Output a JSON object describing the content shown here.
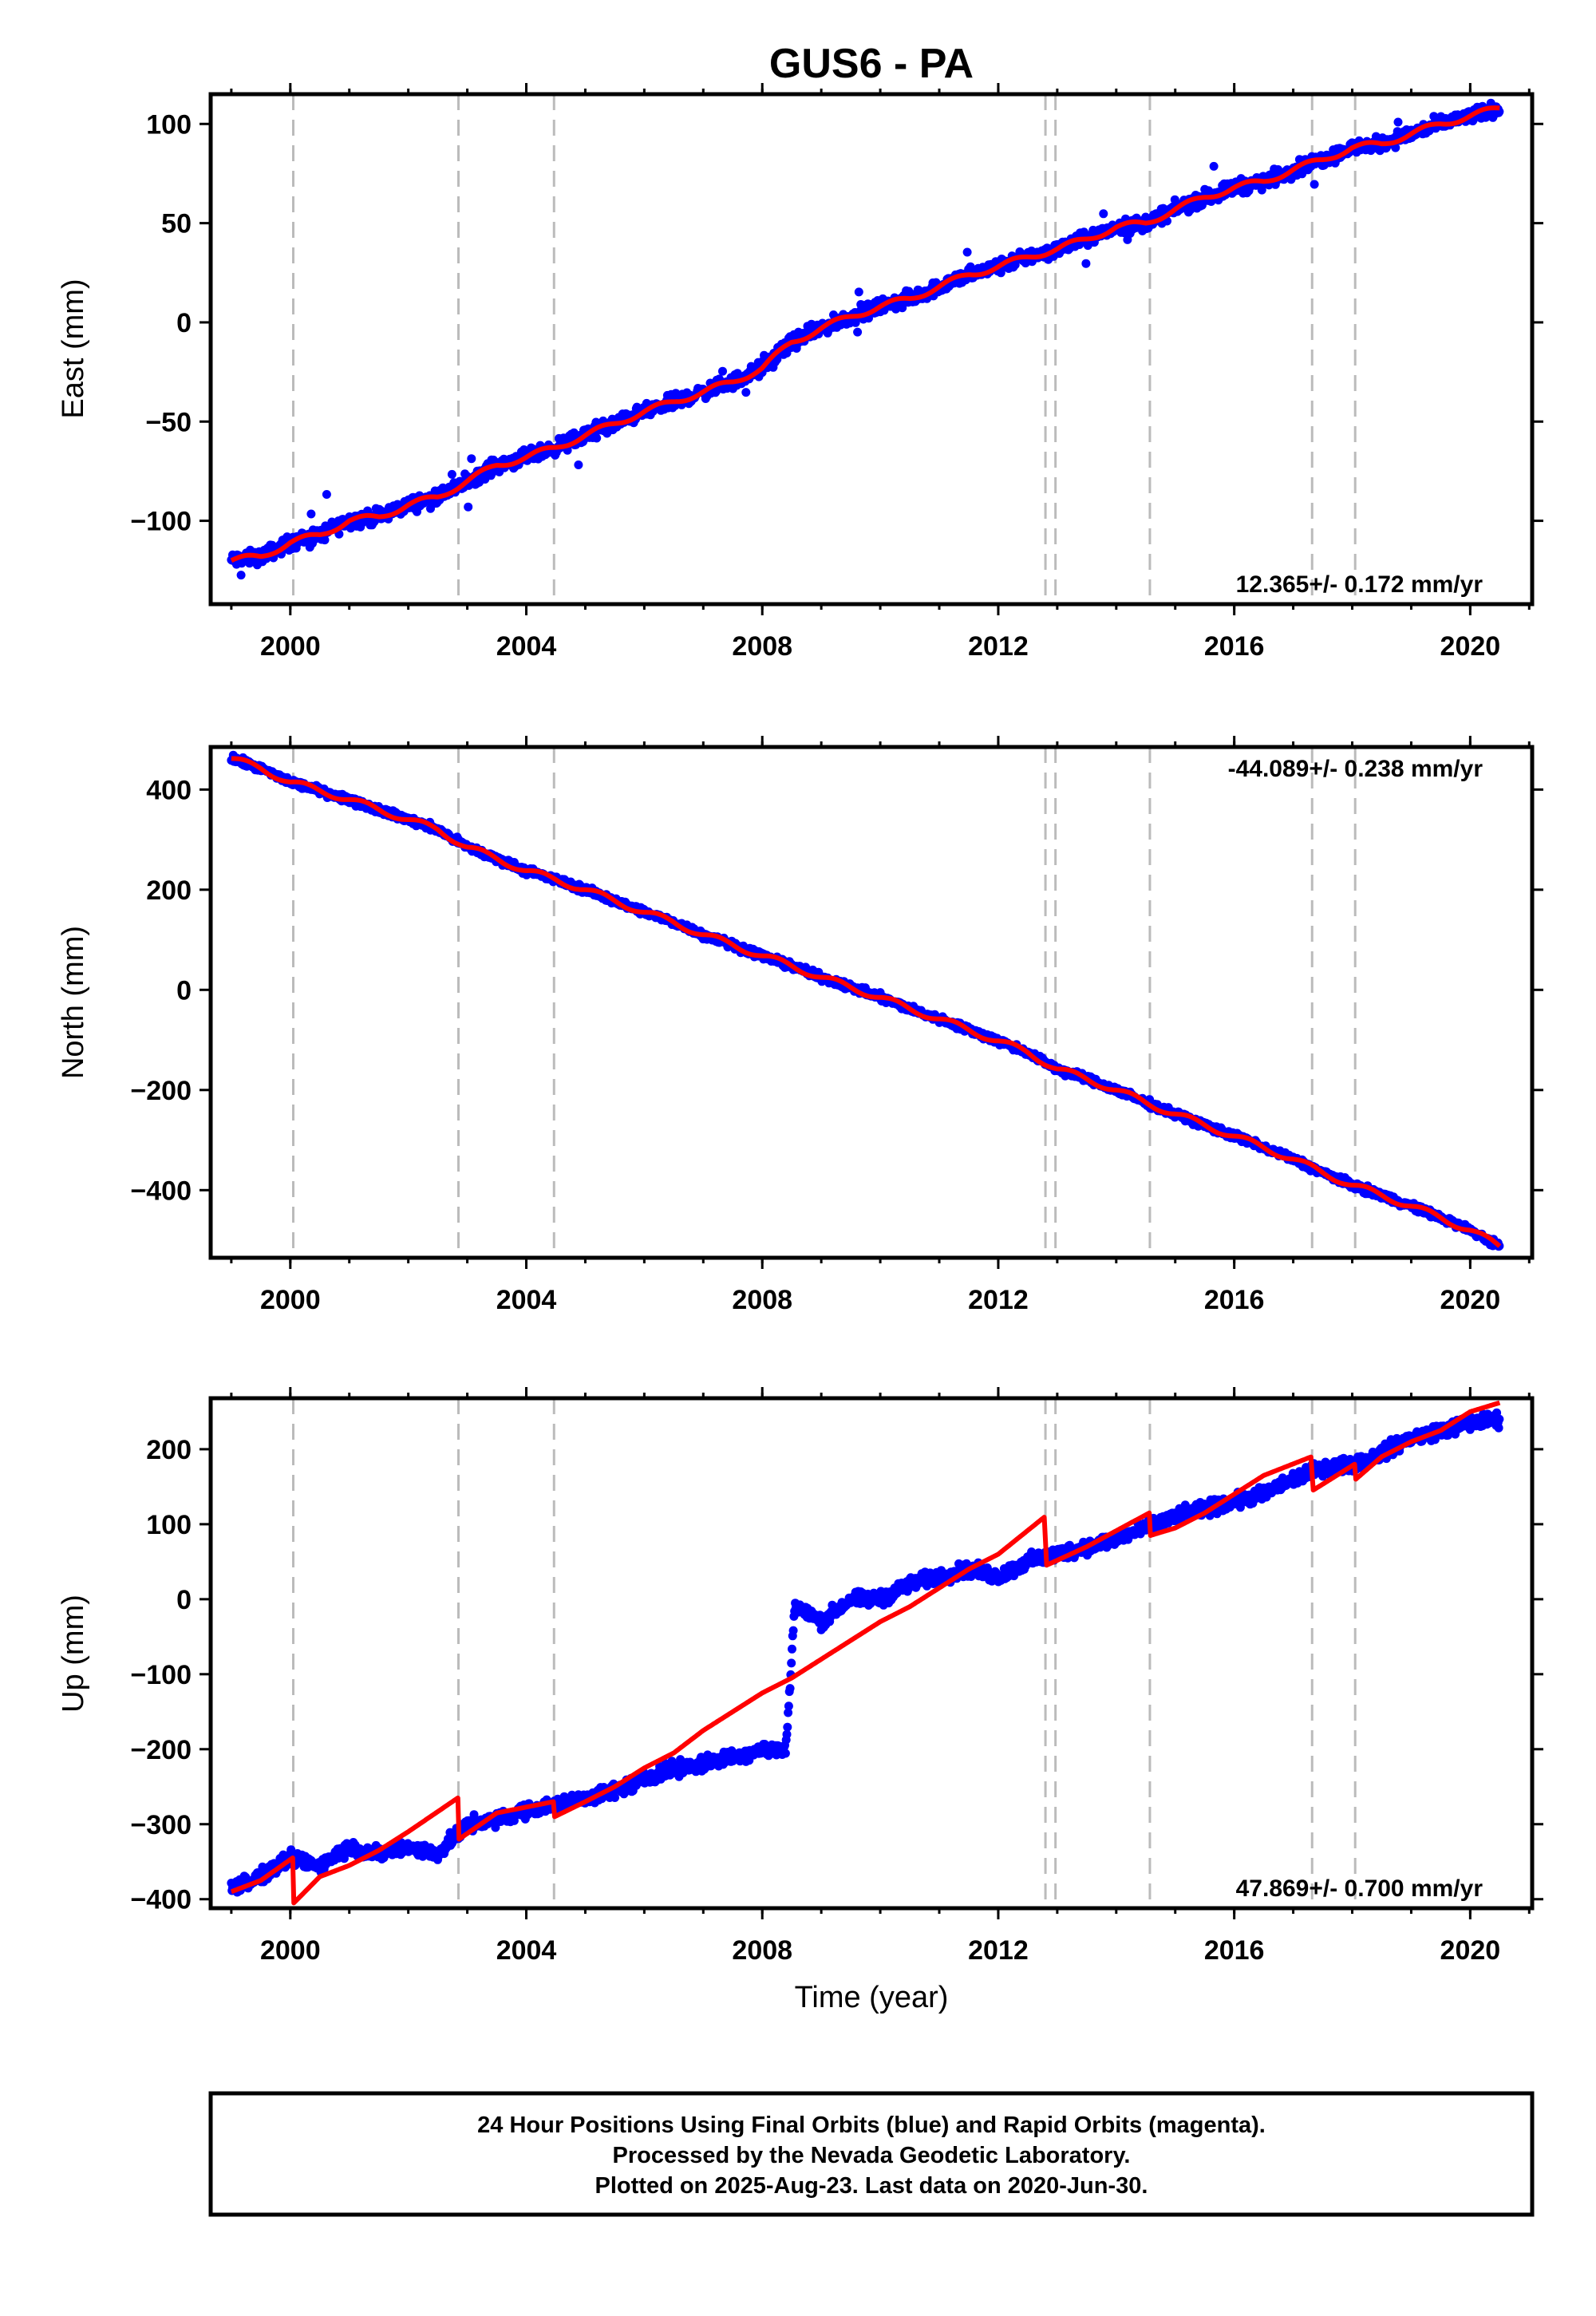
{
  "figure": {
    "title": "GUS6 - PA",
    "xlabel": "Time (year)",
    "footer": [
      "24 Hour Positions Using Final Orbits (blue) and Rapid Orbits (magenta).",
      "Processed by the Nevada Geodetic Laboratory.",
      "Plotted on 2025-Aug-23. Last data on 2020-Jun-30."
    ],
    "colors": {
      "final_orbits": "#0000ff",
      "model_fit": "#ff0000",
      "events": "#bbbbbb",
      "frame": "#000000"
    }
  },
  "chart_data": [
    {
      "type": "scatter",
      "component": "east",
      "ylabel": "East (mm)",
      "rate_label": "12.365+/- 0.172 mm/yr",
      "rate_position": "bottom-right",
      "xlim": [
        1998.65,
        2021.05
      ],
      "ylim": [
        -142,
        115
      ],
      "xticks": [
        2000,
        2004,
        2008,
        2012,
        2016,
        2020
      ],
      "xtick_labels": [
        "2000",
        "2004",
        "2008",
        "2012",
        "2016",
        "2020"
      ],
      "yticks": [
        -100,
        -50,
        0,
        50,
        100
      ],
      "ytick_labels": [
        "−100",
        "−50",
        "0",
        "50",
        "100"
      ],
      "event_lines": [
        2000.05,
        2002.85,
        2004.47,
        2012.8,
        2012.97,
        2014.57,
        2017.32,
        2018.05
      ],
      "series": [
        {
          "kind": "points",
          "x": [
            1999.0,
            1999.5,
            2000.0,
            2000.5,
            2001.0,
            2001.5,
            2002.0,
            2002.5,
            2003.0,
            2003.5,
            2004.0,
            2004.5,
            2005.0,
            2005.5,
            2006.0,
            2006.5,
            2007.0,
            2007.5,
            2008.0,
            2008.5,
            2009.0,
            2009.5,
            2010.0,
            2010.5,
            2011.0,
            2011.5,
            2012.0,
            2012.5,
            2013.0,
            2013.5,
            2014.0,
            2014.5,
            2015.0,
            2015.5,
            2016.0,
            2016.5,
            2017.0,
            2017.5,
            2018.0,
            2018.5,
            2019.0,
            2019.5,
            2020.0,
            2020.5
          ],
          "y": [
            -120,
            -118,
            -111,
            -107,
            -100,
            -98,
            -92,
            -88,
            -80,
            -72,
            -68,
            -63,
            -57,
            -51,
            -45,
            -40,
            -35,
            -30,
            -23,
            -10,
            -3,
            3,
            8,
            12,
            18,
            24,
            28,
            33,
            37,
            42,
            48,
            50,
            57,
            63,
            68,
            71,
            77,
            82,
            88,
            90,
            95,
            100,
            104,
            108
          ]
        }
      ]
    },
    {
      "type": "scatter",
      "component": "north",
      "ylabel": "North (mm)",
      "rate_label": "-44.089+/- 0.238 mm/yr",
      "rate_position": "top-right",
      "xlim": [
        1998.65,
        2021.05
      ],
      "ylim": [
        -535,
        485
      ],
      "xticks": [
        2000,
        2004,
        2008,
        2012,
        2016,
        2020
      ],
      "xtick_labels": [
        "2000",
        "2004",
        "2008",
        "2012",
        "2016",
        "2020"
      ],
      "yticks": [
        -400,
        -200,
        0,
        200,
        400
      ],
      "ytick_labels": [
        "−400",
        "−200",
        "0",
        "200",
        "400"
      ],
      "event_lines": [
        2000.05,
        2002.85,
        2004.47,
        2012.8,
        2012.97,
        2014.57,
        2017.32,
        2018.05
      ],
      "series": [
        {
          "kind": "points",
          "x": [
            1999.0,
            1999.5,
            2000.0,
            2000.5,
            2001.0,
            2001.5,
            2002.0,
            2002.5,
            2003.0,
            2003.5,
            2004.0,
            2004.5,
            2005.0,
            2005.5,
            2006.0,
            2006.5,
            2007.0,
            2007.5,
            2008.0,
            2008.5,
            2009.0,
            2009.5,
            2010.0,
            2010.5,
            2011.0,
            2011.5,
            2012.0,
            2012.5,
            2013.0,
            2013.5,
            2014.0,
            2014.5,
            2015.0,
            2015.5,
            2016.0,
            2016.5,
            2017.0,
            2017.5,
            2018.0,
            2018.5,
            2019.0,
            2019.5,
            2020.0,
            2020.5
          ],
          "y": [
            462,
            442,
            415,
            398,
            380,
            360,
            340,
            320,
            285,
            262,
            238,
            220,
            200,
            178,
            155,
            135,
            110,
            90,
            68,
            48,
            25,
            5,
            -15,
            -38,
            -58,
            -80,
            -102,
            -125,
            -158,
            -178,
            -200,
            -225,
            -248,
            -270,
            -292,
            -315,
            -338,
            -365,
            -390,
            -410,
            -432,
            -455,
            -480,
            -512
          ]
        }
      ]
    },
    {
      "type": "scatter",
      "component": "up",
      "ylabel": "Up (mm)",
      "rate_label": "47.869+/- 0.700 mm/yr",
      "rate_position": "bottom-right",
      "xlim": [
        1998.65,
        2021.05
      ],
      "ylim": [
        -412,
        268
      ],
      "xticks": [
        2000,
        2004,
        2008,
        2012,
        2016,
        2020
      ],
      "xtick_labels": [
        "2000",
        "2004",
        "2008",
        "2012",
        "2016",
        "2020"
      ],
      "yticks": [
        -400,
        -300,
        -200,
        -100,
        0,
        100,
        200
      ],
      "ytick_labels": [
        "−400",
        "−300",
        "−200",
        "−100",
        "0",
        "100",
        "200"
      ],
      "event_lines": [
        2000.05,
        2002.85,
        2004.47,
        2012.8,
        2012.97,
        2014.57,
        2017.32,
        2018.05
      ],
      "series": [
        {
          "kind": "points",
          "x": [
            1999.0,
            1999.5,
            2000.0,
            2000.5,
            2001.0,
            2001.5,
            2002.0,
            2002.5,
            2003.0,
            2003.5,
            2004.0,
            2004.5,
            2005.0,
            2005.5,
            2006.0,
            2006.5,
            2007.0,
            2007.5,
            2008.0,
            2008.4,
            2008.55,
            2009.0,
            2009.5,
            2010.0,
            2010.5,
            2011.0,
            2011.5,
            2012.0,
            2012.5,
            2013.0,
            2013.5,
            2014.0,
            2014.5,
            2015.0,
            2015.5,
            2016.0,
            2016.5,
            2017.0,
            2017.5,
            2018.0,
            2018.5,
            2019.0,
            2019.5,
            2020.0,
            2020.5
          ],
          "y": [
            -385,
            -370,
            -345,
            -355,
            -330,
            -340,
            -330,
            -340,
            -300,
            -295,
            -280,
            -275,
            -265,
            -255,
            -240,
            -225,
            -220,
            -210,
            -200,
            -200,
            -10,
            -30,
            0,
            0,
            20,
            30,
            40,
            30,
            50,
            60,
            70,
            80,
            95,
            110,
            120,
            130,
            140,
            160,
            175,
            180,
            195,
            215,
            225,
            235,
            240
          ]
        },
        {
          "kind": "model",
          "x": [
            1999.0,
            1999.5,
            2000.04,
            2000.06,
            2000.5,
            2001.0,
            2001.5,
            2002.0,
            2002.84,
            2002.86,
            2003.5,
            2004.46,
            2004.48,
            2005.0,
            2005.5,
            2006.0,
            2006.5,
            2007.0,
            2007.5,
            2008.0,
            2008.5,
            2009.0,
            2009.5,
            2010.0,
            2010.5,
            2011.0,
            2011.5,
            2012.0,
            2012.79,
            2012.81,
            2013.5,
            2014.56,
            2014.58,
            2015.0,
            2015.5,
            2016.0,
            2016.5,
            2017.31,
            2017.33,
            2018.04,
            2018.06,
            2018.5,
            2019.0,
            2019.5,
            2020.0,
            2020.5
          ],
          "y": [
            -390,
            -375,
            -345,
            -405,
            -370,
            -355,
            -335,
            -310,
            -265,
            -320,
            -285,
            -270,
            -290,
            -270,
            -250,
            -225,
            -205,
            -175,
            -150,
            -125,
            -105,
            -80,
            -55,
            -30,
            -10,
            15,
            40,
            60,
            110,
            45,
            70,
            115,
            85,
            95,
            115,
            140,
            165,
            190,
            145,
            180,
            160,
            190,
            210,
            225,
            250,
            262
          ]
        }
      ]
    }
  ]
}
